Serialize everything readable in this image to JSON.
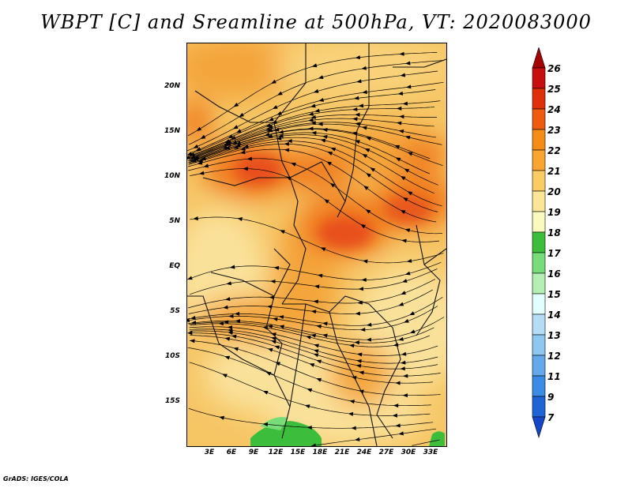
{
  "title": "WBPT [C] and Sreamline at 500hPa, VT: 2020083000",
  "footer": "GrADS: IGES/COLA",
  "map": {
    "lat_ticks": [
      "20N",
      "15N",
      "10N",
      "5N",
      "EQ",
      "5S",
      "10S",
      "15S"
    ],
    "lon_ticks": [
      "3E",
      "6E",
      "9E",
      "12E",
      "15E",
      "18E",
      "21E",
      "24E",
      "27E",
      "30E",
      "33E"
    ],
    "lat_range": [
      -20,
      24
    ],
    "lon_range": [
      0,
      35
    ],
    "field": "Wet-bulb potential temperature at 500hPa with streamlines",
    "regions": [
      {
        "label": "warm core west",
        "lon": 9,
        "lat": 12,
        "value": 23
      },
      {
        "label": "warm core central",
        "lon": 21,
        "lat": 7,
        "value": 23
      },
      {
        "label": "warm core east",
        "lon": 29,
        "lat": 10,
        "value": 22
      },
      {
        "label": "cool patch south",
        "lon": 12,
        "lat": -18,
        "value": 18
      },
      {
        "label": "cool patch east",
        "lon": 34,
        "lat": -19,
        "value": 18
      }
    ]
  },
  "colorbar": {
    "labels": [
      "26",
      "25",
      "24",
      "23",
      "22",
      "21",
      "20",
      "19",
      "18",
      "17",
      "16",
      "15",
      "14",
      "13",
      "12",
      "11",
      "9",
      "7"
    ],
    "colors": [
      "#a50000",
      "#c80f0f",
      "#e0300a",
      "#f05a0f",
      "#f58c14",
      "#faa532",
      "#facd64",
      "#fae696",
      "#fafabe",
      "#3cbe3c",
      "#78dc78",
      "#b4f0b4",
      "#e1ffff",
      "#b4dcf5",
      "#8cc8f0",
      "#64aaeb",
      "#3c8ce6",
      "#1e64d7",
      "#1446c8"
    ]
  },
  "colors": {
    "background_field": "#f6c665",
    "streamline": "#000000",
    "border": "#1a1a1a"
  }
}
